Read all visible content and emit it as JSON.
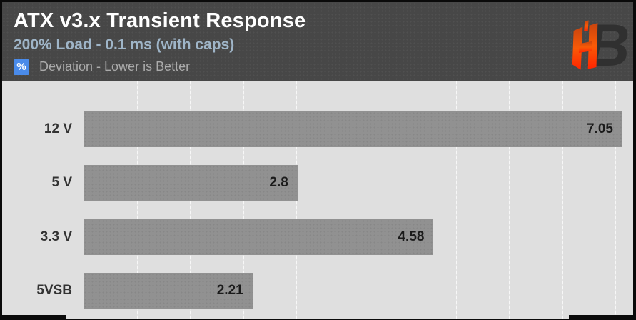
{
  "header": {
    "title": "ATX v3.x Transient Response",
    "subtitle": "200% Load - 0.1 ms (with caps)",
    "unit_badge": "%",
    "note": "Deviation - Lower is Better"
  },
  "logo": {
    "monogram_left": "H",
    "monogram_right": "B"
  },
  "colors": {
    "header_bg": "#474747",
    "chart_bg": "#dfdfdf",
    "bar_gray": "#919191",
    "badge_blue": "#4a8bea",
    "subtitle_blue_gray": "#9fb5c8",
    "note_gray": "#ababab",
    "value_text": "#1b1b1b",
    "category_text": "#333333",
    "logo_orange_top": "#e05510",
    "logo_orange_bottom": "#ff2a00",
    "logo_dark": "#303030"
  },
  "chart_data": {
    "type": "bar",
    "orientation": "horizontal",
    "title": "ATX v3.x Transient Response",
    "subtitle": "200% Load - 0.1 ms (with caps)",
    "note": "Deviation - Lower is Better",
    "value_unit": "%",
    "categories": [
      "12 V",
      "5 V",
      "3.3 V",
      "5VSB"
    ],
    "values": [
      7.05,
      2.8,
      4.58,
      2.21
    ],
    "value_labels": [
      "7.05",
      "2.8",
      "4.58",
      "2.21"
    ],
    "xlim": [
      0,
      7.05
    ],
    "grid": true,
    "gridline_count": 11,
    "legend": false
  }
}
